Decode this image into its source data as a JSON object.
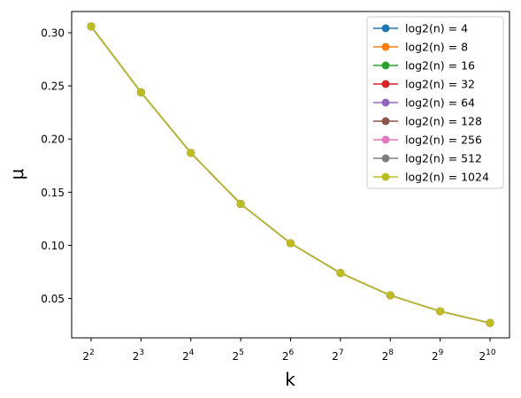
{
  "chart_data": {
    "type": "line",
    "xscale": "log2",
    "x": [
      4,
      8,
      16,
      32,
      64,
      128,
      256,
      512,
      1024
    ],
    "xtick_labels": [
      {
        "base": "2",
        "exp": "2"
      },
      {
        "base": "2",
        "exp": "3"
      },
      {
        "base": "2",
        "exp": "4"
      },
      {
        "base": "2",
        "exp": "5"
      },
      {
        "base": "2",
        "exp": "6"
      },
      {
        "base": "2",
        "exp": "7"
      },
      {
        "base": "2",
        "exp": "8"
      },
      {
        "base": "2",
        "exp": "9"
      },
      {
        "base": "2",
        "exp": "10"
      }
    ],
    "yticks": [
      0.05,
      0.1,
      0.15,
      0.2,
      0.25,
      0.3
    ],
    "ytick_labels": [
      "0.05",
      "0.10",
      "0.15",
      "0.20",
      "0.25",
      "0.30"
    ],
    "xlabel": "k",
    "ylabel": "μ",
    "ylim": [
      0.013,
      0.32
    ],
    "legend_position": "top-right",
    "grid": false,
    "series": [
      {
        "name": "log2(n) = 4",
        "color": "#1f77b4",
        "values": [
          0.306,
          0.244,
          0.187,
          0.139,
          0.102,
          0.074,
          0.053,
          0.038,
          0.027
        ]
      },
      {
        "name": "log2(n) = 8",
        "color": "#ff7f0e",
        "values": [
          0.306,
          0.244,
          0.187,
          0.139,
          0.102,
          0.074,
          0.053,
          0.038,
          0.027
        ]
      },
      {
        "name": "log2(n) = 16",
        "color": "#2ca02c",
        "values": [
          0.306,
          0.244,
          0.187,
          0.139,
          0.102,
          0.074,
          0.053,
          0.038,
          0.027
        ]
      },
      {
        "name": "log2(n) = 32",
        "color": "#d62728",
        "values": [
          0.306,
          0.244,
          0.187,
          0.139,
          0.102,
          0.074,
          0.053,
          0.038,
          0.027
        ]
      },
      {
        "name": "log2(n) = 64",
        "color": "#9467bd",
        "values": [
          0.306,
          0.244,
          0.187,
          0.139,
          0.102,
          0.074,
          0.053,
          0.038,
          0.027
        ]
      },
      {
        "name": "log2(n) = 128",
        "color": "#8c564b",
        "values": [
          0.306,
          0.244,
          0.187,
          0.139,
          0.102,
          0.074,
          0.053,
          0.038,
          0.027
        ]
      },
      {
        "name": "log2(n) = 256",
        "color": "#e377c2",
        "values": [
          0.306,
          0.244,
          0.187,
          0.139,
          0.102,
          0.074,
          0.053,
          0.038,
          0.027
        ]
      },
      {
        "name": "log2(n) = 512",
        "color": "#7f7f7f",
        "values": [
          0.306,
          0.244,
          0.187,
          0.139,
          0.102,
          0.074,
          0.053,
          0.038,
          0.027
        ]
      },
      {
        "name": "log2(n) = 1024",
        "color": "#bcbd22",
        "values": [
          0.306,
          0.244,
          0.187,
          0.139,
          0.102,
          0.074,
          0.053,
          0.038,
          0.027
        ]
      }
    ]
  }
}
